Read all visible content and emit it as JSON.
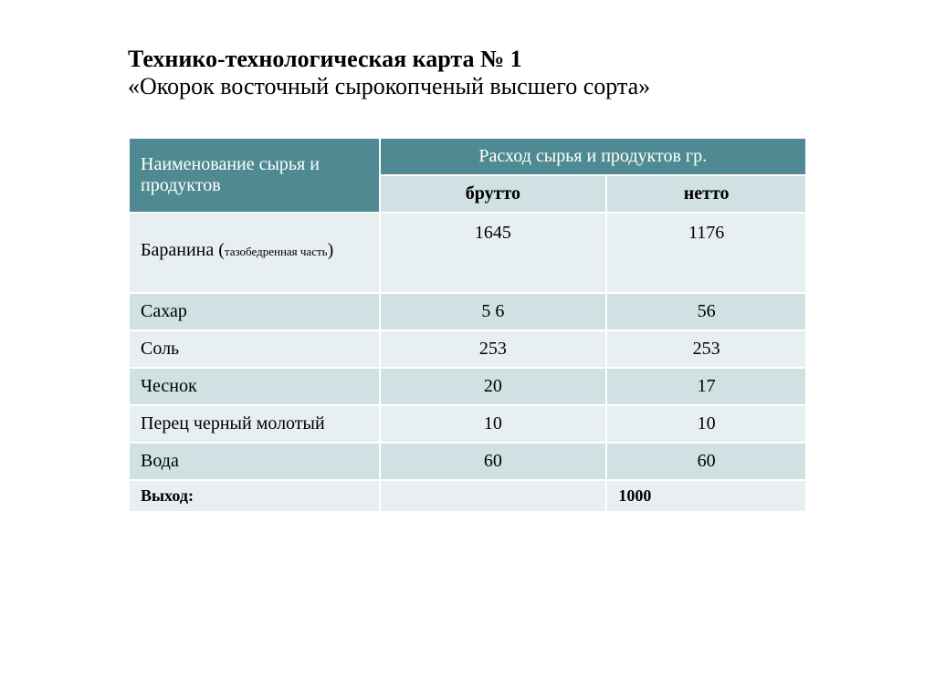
{
  "title": {
    "line1": "Технико-технологическая карта №  1",
    "line2": "«Окорок восточный сырокопченый высшего сорта»"
  },
  "table": {
    "colors": {
      "header_bg": "#4f8a93",
      "header_text": "#ffffff",
      "subheader_bg": "#d0e0e3",
      "row_odd_bg": "#e8eff0",
      "row_even_bg": "#d0e0e3",
      "border": "#ffffff",
      "text": "#000000"
    },
    "header": {
      "col1": "Наименование сырья и продуктов",
      "col2_span": "Расход сырья и продуктов  гр.",
      "sub_col2": "брутто",
      "sub_col3": "нетто"
    },
    "rows": [
      {
        "name_main": "Баранина (",
        "name_sub": "тазобедренная часть",
        "name_close": ")",
        "brutto": "1645",
        "netto": "1176",
        "tall": true
      },
      {
        "name": "Сахар",
        "brutto": "5 6",
        "netto": "56"
      },
      {
        "name": "Соль",
        "brutto": "253",
        "netto": "253"
      },
      {
        "name": "Чеснок",
        "brutto": "20",
        "netto": "17"
      },
      {
        "name": "Перец черный молотый",
        "brutto": "10",
        "netto": "10"
      },
      {
        "name": "Вода",
        "brutto": "60",
        "netto": "60"
      }
    ],
    "yield": {
      "label": "Выход:",
      "value": "1000"
    }
  }
}
